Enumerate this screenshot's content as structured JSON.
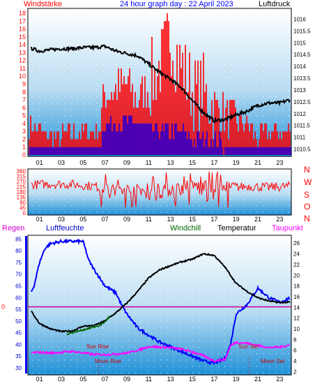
{
  "header": {
    "title": "24 hour graph day : 22 April 2023",
    "left_label": "Windstärke",
    "right_label": "Luftdruck"
  },
  "colors": {
    "red": "#ff0000",
    "blue": "#0000ff",
    "black": "#000000",
    "green": "#006600",
    "magenta": "#ff00ff",
    "grad_top": "#ffffff",
    "grad_bottom": "#1e90d8"
  },
  "x_ticks": [
    "01",
    "03",
    "05",
    "07",
    "09",
    "11",
    "13",
    "15",
    "17",
    "19",
    "21",
    "23"
  ],
  "chart_data": [
    {
      "type": "line",
      "name": "wind-pressure",
      "x_range_hours": [
        0,
        24
      ],
      "y_left_ticks": [
        "0",
        "1",
        "2",
        "3",
        "4",
        "5",
        "6",
        "7",
        "8",
        "9",
        "10",
        "11",
        "12",
        "13",
        "14",
        "15",
        "16",
        "17",
        "18"
      ],
      "y_left_range": [
        0,
        18
      ],
      "y_right_ticks": [
        "1010.5",
        "1011",
        "1011.5",
        "1012",
        "1012.5",
        "1013",
        "1013.5",
        "1014",
        "1014.5",
        "1015",
        "1015.5",
        "1016"
      ],
      "y_right_range": [
        1010.25,
        1016.25
      ],
      "series": [
        {
          "name": "Luftdruck",
          "color": "black",
          "hours": [
            0,
            1,
            2,
            3,
            4,
            5,
            6,
            7,
            8,
            9,
            10,
            11,
            12,
            13,
            14,
            15,
            16,
            17,
            18,
            19,
            20,
            21,
            22,
            23,
            24
          ],
          "values": [
            1014.8,
            1014.65,
            1014.7,
            1014.75,
            1014.75,
            1014.8,
            1014.8,
            1014.85,
            1014.65,
            1014.55,
            1014.45,
            1014.1,
            1013.75,
            1013.45,
            1013.1,
            1012.55,
            1012.05,
            1011.7,
            1011.75,
            1011.95,
            1012.1,
            1012.35,
            1012.45,
            1012.45,
            1012.6
          ]
        },
        {
          "name": "Windstärke",
          "color": "red",
          "hours": [
            0,
            2,
            5,
            6.6,
            6.7,
            7,
            8,
            9,
            10,
            11,
            12,
            13,
            14,
            15,
            16,
            17,
            18,
            19,
            20,
            21,
            22,
            23,
            24
          ],
          "values": [
            4,
            2,
            3,
            3,
            5,
            8,
            8,
            9,
            7,
            9,
            11,
            15,
            11,
            8,
            8,
            6,
            5,
            4,
            4,
            2,
            3,
            3,
            3
          ]
        },
        {
          "name": "Böen",
          "color": "blue",
          "hours": [
            0,
            1,
            2,
            3,
            4,
            5,
            6.6,
            6.7,
            7,
            8,
            9,
            10,
            11,
            12,
            13,
            14,
            15,
            16,
            17,
            18,
            19,
            20,
            21,
            22,
            23,
            24
          ],
          "values": [
            1,
            1,
            1,
            1,
            1,
            1,
            1,
            4,
            4,
            4,
            4,
            4,
            3,
            3,
            3,
            3,
            2,
            2,
            2,
            1,
            1,
            1,
            1,
            1,
            1,
            1
          ]
        }
      ]
    },
    {
      "type": "line",
      "name": "wind-direction",
      "x_range_hours": [
        0,
        24
      ],
      "y_left_ticks": [
        "0",
        "45",
        "90",
        "135",
        "180",
        "225",
        "270",
        "315",
        "360"
      ],
      "y_left_range": [
        0,
        360
      ],
      "y_right_ticks": [
        "N",
        "W",
        "S",
        "O",
        "N"
      ],
      "series": [
        {
          "name": "Windrichtung",
          "color": "red",
          "hours": [
            0,
            2,
            4,
            6,
            8,
            10,
            12,
            14,
            16,
            18,
            20,
            22,
            24
          ],
          "values": [
            240,
            250,
            245,
            230,
            200,
            190,
            180,
            220,
            240,
            210,
            230,
            220,
            230
          ]
        }
      ]
    },
    {
      "type": "line",
      "name": "temperature-humidity",
      "x_range_hours": [
        0,
        24
      ],
      "legend": [
        "Regen",
        "Luftfeuchte",
        "Windchill",
        "Temperatur",
        "Taupunkt"
      ],
      "y_left_ticks": [
        "30",
        "35",
        "40",
        "45",
        "50",
        "55",
        "60",
        "65",
        "70",
        "75",
        "80",
        "85"
      ],
      "y_left_range": [
        27,
        86
      ],
      "y_right_ticks": [
        "2",
        "4",
        "6",
        "8",
        "10",
        "12",
        "14",
        "16",
        "18",
        "20",
        "22",
        "24",
        "26"
      ],
      "y_right_range": [
        1.4,
        27.2
      ],
      "zero_label": "0",
      "annotations": [
        "Sun Rise",
        "Moon Rise",
        "Sun Set",
        "Moon Set"
      ],
      "series": [
        {
          "name": "Luftfeuchte",
          "color": "blue",
          "hours": [
            0,
            0.5,
            1,
            1.5,
            2,
            3,
            4,
            5,
            5.5,
            6,
            7,
            8,
            8.5,
            9,
            10,
            11,
            12,
            13,
            14,
            15,
            16,
            17,
            18,
            18.5,
            19,
            20,
            21,
            22,
            23,
            24
          ],
          "values": [
            60,
            65,
            75,
            81,
            83,
            84,
            84,
            84,
            76,
            72,
            65,
            62,
            57,
            53,
            47,
            44,
            41,
            39,
            37,
            35,
            33,
            32,
            34,
            40,
            53,
            57,
            64,
            60,
            58,
            60
          ]
        },
        {
          "name": "Temperatur",
          "color": "black",
          "hours": [
            0,
            0.5,
            1,
            2,
            3,
            4,
            5,
            6,
            7,
            8,
            9,
            10,
            11,
            12,
            13,
            14,
            15,
            16,
            17,
            18,
            19,
            20,
            21,
            22,
            23,
            24
          ],
          "values": [
            14,
            12.5,
            11,
            10,
            9.5,
            9.6,
            10.5,
            10.6,
            11.5,
            13,
            14.8,
            17,
            19.5,
            21,
            21.8,
            22.5,
            23,
            24,
            23.7,
            21.5,
            18.5,
            17,
            15.8,
            15.2,
            14.9,
            15
          ]
        },
        {
          "name": "Windchill",
          "color": "green",
          "hours": [
            3.5,
            4,
            6.5,
            7,
            7.5
          ],
          "values": [
            9,
            9.3,
            10.6,
            11.3,
            12.5
          ]
        },
        {
          "name": "Taupunkt",
          "color": "magenta",
          "hours": [
            0,
            1,
            2,
            3,
            4,
            5,
            6,
            7,
            8,
            9,
            10,
            11,
            12,
            13,
            14,
            15,
            16,
            17,
            18,
            18.5,
            19,
            20,
            21,
            22,
            23,
            24
          ],
          "values": [
            5.5,
            5.6,
            5.5,
            5.6,
            5.8,
            5.5,
            5.2,
            5.2,
            5.3,
            5.5,
            6,
            6.7,
            6.6,
            6.5,
            6.2,
            5.7,
            5,
            4,
            4.3,
            6.8,
            7.5,
            7.3,
            6.9,
            6.5,
            6.6,
            7
          ]
        }
      ]
    }
  ]
}
